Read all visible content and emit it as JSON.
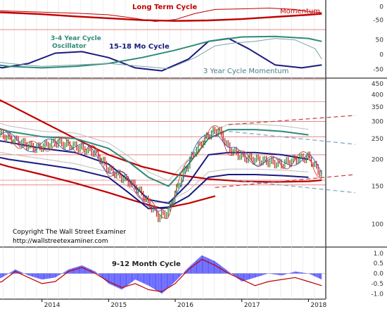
{
  "colors": {
    "long_term": "#c00000",
    "momentum": "#c00000",
    "mo15_18": "#1a1a80",
    "y3_4": "#2f8a79",
    "y3mom": "#7aa3a8",
    "cycle912": "#c00000",
    "histogram": "#3a3aff",
    "price_up": "#2e8b2e",
    "price_down": "#cc2222",
    "bollinger": "#bdbdbd",
    "grid_red": "#cc0000"
  },
  "chart_data": [
    {
      "type": "line",
      "panel": "top",
      "labels": {
        "long_term": "Long Term Cycle",
        "momentum": "Momentum"
      },
      "yticks": [
        "0",
        "-50"
      ],
      "ylim": [
        -80,
        20
      ],
      "series": [
        {
          "name": "Long Term Cycle",
          "key": "long_term",
          "x": [
            2013.0,
            2013.5,
            2014.0,
            2014.5,
            2015.0,
            2015.5,
            2016.0,
            2016.5,
            2017.0,
            2017.5,
            2018.0,
            2018.2
          ],
          "values": [
            -18,
            -22,
            -28,
            -36,
            -43,
            -50,
            -53,
            -51,
            -46,
            -38,
            -30,
            -26
          ]
        },
        {
          "name": "Momentum",
          "key": "momentum",
          "x": [
            2013.0,
            2013.5,
            2014.0,
            2014.5,
            2015.0,
            2015.3,
            2015.7,
            2016.0,
            2016.3,
            2016.6,
            2017.0,
            2017.4,
            2017.8,
            2018.0,
            2018.2
          ],
          "values": [
            -12,
            -16,
            -20,
            -24,
            -30,
            -40,
            -55,
            -48,
            -25,
            -10,
            -8,
            -5,
            -10,
            -18,
            -22
          ]
        }
      ]
    },
    {
      "type": "line",
      "panel": "oscillator",
      "labels": {
        "y3_4_a": "3-4 Year Cycle",
        "y3_4_b": "Oscillator",
        "mo15_18": "15-18 Mo Cycle",
        "y3mom": "3 Year Cycle Momentum"
      },
      "yticks": [
        "50",
        "0",
        "-50"
      ],
      "ylim": [
        -80,
        90
      ],
      "series": [
        {
          "name": "15-18 Mo Cycle",
          "key": "mo15_18",
          "x": [
            2013.0,
            2013.4,
            2013.8,
            2014.2,
            2014.6,
            2015.0,
            2015.4,
            2015.8,
            2016.2,
            2016.5,
            2016.8,
            2017.1,
            2017.5,
            2017.9,
            2018.2
          ],
          "values": [
            -20,
            -45,
            -30,
            5,
            10,
            -10,
            -45,
            -55,
            -15,
            45,
            55,
            20,
            -35,
            -45,
            -35
          ]
        },
        {
          "name": "3-4 Year Cycle Oscillator",
          "key": "y3_4",
          "x": [
            2013.0,
            2013.5,
            2014.0,
            2014.5,
            2015.0,
            2015.5,
            2016.0,
            2016.5,
            2017.0,
            2017.5,
            2018.0,
            2018.2
          ],
          "values": [
            -25,
            -40,
            -45,
            -40,
            -30,
            -10,
            15,
            45,
            60,
            62,
            55,
            45
          ]
        },
        {
          "name": "3 Year Cycle Momentum",
          "key": "y3mom",
          "x": [
            2013.0,
            2013.5,
            2014.0,
            2014.5,
            2015.0,
            2015.5,
            2015.9,
            2016.3,
            2016.6,
            2016.9,
            2017.2,
            2017.5,
            2017.8,
            2018.1,
            2018.2
          ],
          "values": [
            -15,
            -30,
            -40,
            -35,
            -30,
            -40,
            -48,
            -10,
            30,
            40,
            45,
            55,
            50,
            20,
            -15
          ]
        }
      ]
    },
    {
      "type": "line",
      "panel": "price",
      "yticks": [
        "450",
        "400",
        "350",
        "300",
        "250",
        "200",
        "150",
        "100"
      ],
      "yscale": "log",
      "ylim": [
        80,
        470
      ],
      "series": [
        {
          "name": "Price",
          "key": "price",
          "x": [
            2013.0,
            2013.3,
            2013.6,
            2013.9,
            2014.2,
            2014.5,
            2014.8,
            2015.0,
            2015.2,
            2015.4,
            2015.6,
            2015.75,
            2015.9,
            2016.1,
            2016.3,
            2016.5,
            2016.65,
            2016.8,
            2017.0,
            2017.2,
            2017.4,
            2017.6,
            2017.8,
            2018.0,
            2018.1,
            2018.2
          ],
          "values": [
            290,
            265,
            245,
            225,
            240,
            230,
            215,
            180,
            165,
            150,
            125,
            108,
            115,
            165,
            220,
            260,
            275,
            225,
            205,
            200,
            195,
            190,
            200,
            205,
            185,
            170
          ]
        },
        {
          "name": "Upper Channel",
          "key": "ma_upper",
          "x": [
            2013.0,
            2013.5,
            2014.0,
            2014.5,
            2015.0,
            2015.3,
            2015.6,
            2015.9,
            2016.2,
            2016.5,
            2016.8,
            2017.2,
            2017.6,
            2018.0
          ],
          "values": [
            300,
            270,
            255,
            250,
            225,
            195,
            165,
            150,
            190,
            250,
            275,
            275,
            270,
            260
          ]
        },
        {
          "name": "Middle Channel",
          "key": "ma_mid",
          "x": [
            2013.0,
            2013.5,
            2014.0,
            2014.5,
            2015.0,
            2015.3,
            2015.6,
            2015.9,
            2016.2,
            2016.5,
            2016.8,
            2017.2,
            2017.6,
            2018.0
          ],
          "values": [
            255,
            240,
            225,
            215,
            190,
            160,
            130,
            125,
            155,
            210,
            215,
            215,
            210,
            200
          ]
        },
        {
          "name": "Lower Channel",
          "key": "ma_lower",
          "x": [
            2013.0,
            2013.5,
            2014.0,
            2014.5,
            2015.0,
            2015.3,
            2015.6,
            2015.9,
            2016.2,
            2016.5,
            2016.8,
            2017.2,
            2017.6,
            2018.0
          ],
          "values": [
            215,
            200,
            190,
            180,
            165,
            140,
            118,
            120,
            135,
            165,
            170,
            170,
            168,
            165
          ]
        },
        {
          "name": "Long Cycle MA",
          "key": "long_ma",
          "x": [
            2013.0,
            2013.5,
            2014.0,
            2014.5,
            2015.0,
            2015.5,
            2016.0,
            2016.5,
            2017.0,
            2017.5,
            2018.0,
            2018.2
          ],
          "values": [
            430,
            360,
            300,
            250,
            210,
            185,
            170,
            162,
            158,
            157,
            158,
            160
          ]
        },
        {
          "name": "Lower Red Cycle",
          "key": "red_low",
          "x": [
            2013.0,
            2013.5,
            2014.0,
            2014.5,
            2015.0,
            2015.4,
            2015.8,
            2016.2,
            2016.6
          ],
          "values": [
            205,
            185,
            170,
            155,
            140,
            128,
            118,
            125,
            135
          ]
        }
      ],
      "projections": [
        {
          "key": "proj1",
          "x": [
            2016.8,
            2018.7
          ],
          "values": [
            290,
            320
          ]
        },
        {
          "key": "proj2",
          "x": [
            2016.8,
            2018.7
          ],
          "values": [
            270,
            235
          ]
        },
        {
          "key": "proj3",
          "x": [
            2016.6,
            2018.7
          ],
          "values": [
            148,
            170
          ]
        },
        {
          "key": "proj4",
          "x": [
            2016.9,
            2018.7
          ],
          "values": [
            160,
            140
          ]
        }
      ],
      "hlines": [
        470,
        370,
        300,
        255,
        210,
        160,
        152
      ],
      "copyright": "Copyright The Wall Street Examiner",
      "url": "http://wallstreetexaminer.com"
    },
    {
      "type": "bar",
      "panel": "cycle912",
      "title": "9-12 Month Cycle",
      "yticks": [
        "1.0",
        "0.5",
        "0.0",
        "-0.5",
        "-1.0"
      ],
      "ylim": [
        -1.2,
        1.2
      ],
      "histogram": {
        "x": [
          2013.0,
          2013.2,
          2013.4,
          2013.6,
          2013.8,
          2014.0,
          2014.2,
          2014.4,
          2014.6,
          2014.8,
          2015.0,
          2015.2,
          2015.4,
          2015.6,
          2015.8,
          2016.0,
          2016.2,
          2016.4,
          2016.6,
          2016.8,
          2017.0,
          2017.2,
          2017.4,
          2017.6,
          2017.8,
          2018.0,
          2018.2
        ],
        "values": [
          -0.3,
          -0.5,
          -0.2,
          0.2,
          -0.1,
          -0.3,
          -0.2,
          0.2,
          0.4,
          0.1,
          -0.5,
          -0.8,
          -0.3,
          -0.6,
          -1.0,
          -0.4,
          0.3,
          0.9,
          0.6,
          0.1,
          -0.4,
          -0.2,
          0.0,
          -0.1,
          0.1,
          0.0,
          -0.3
        ]
      },
      "series": [
        {
          "name": "9-12 Month Cycle",
          "key": "cycle912",
          "x": [
            2013.0,
            2013.2,
            2013.4,
            2013.6,
            2013.8,
            2014.0,
            2014.2,
            2014.4,
            2014.6,
            2014.8,
            2015.0,
            2015.2,
            2015.4,
            2015.6,
            2015.8,
            2016.0,
            2016.2,
            2016.4,
            2016.6,
            2016.8,
            2017.0,
            2017.2,
            2017.4,
            2017.6,
            2017.8,
            2018.0,
            2018.2
          ],
          "values": [
            -0.2,
            -0.6,
            -0.4,
            0.1,
            -0.2,
            -0.5,
            -0.4,
            0.1,
            0.3,
            0.0,
            -0.4,
            -0.7,
            -0.5,
            -0.8,
            -0.9,
            -0.5,
            0.2,
            0.7,
            0.4,
            0.0,
            -0.3,
            -0.6,
            -0.4,
            -0.3,
            -0.2,
            -0.4,
            -0.6
          ]
        }
      ]
    }
  ],
  "xaxis": {
    "ticks": [
      {
        "label": "2014",
        "x": 2014.0
      },
      {
        "label": "2015",
        "x": 2015.0
      },
      {
        "label": "2016",
        "x": 2016.0
      },
      {
        "label": "2017",
        "x": 2017.0
      },
      {
        "label": "2018",
        "x": 2018.0
      }
    ],
    "xlim": [
      2013.37,
      2018.26
    ]
  }
}
